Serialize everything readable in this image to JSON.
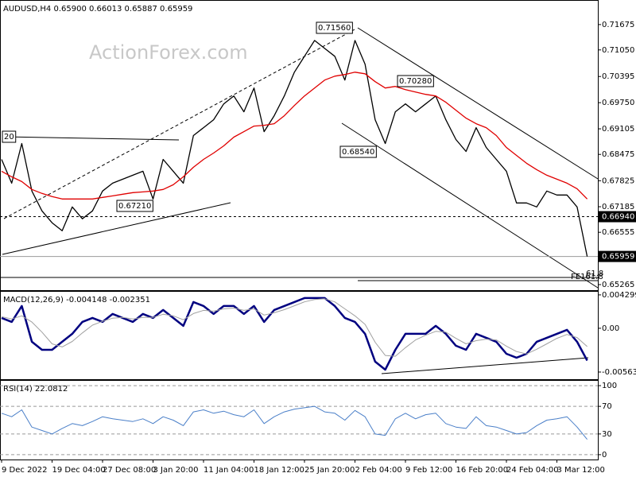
{
  "chart_data": [
    {
      "type": "line",
      "title": "AUDUSD,H4  0.65900 0.66013 0.65887 0.65959",
      "watermark": "ActionForex.com",
      "ylim": [
        0.65128,
        0.72261
      ],
      "yticks": [
        0.71675,
        {
          "value": 0.7105,
          "label": "0.71050"
        },
        0.70395,
        {
          "value": 0.6975,
          "label": "0.69750"
        },
        0.69105,
        0.68475,
        0.67825,
        0.67185,
        0.66555,
        0.65265
      ],
      "levels": [
        {
          "value": 0.6694,
          "label": "0.66940",
          "style": "dashed"
        },
        {
          "value": 0.65959,
          "label": "0.65959",
          "style": "solid"
        }
      ],
      "annotations": [
        "0.71560",
        "0.70280",
        "0.68540",
        "0.67210",
        "20",
        "61.8",
        "FE161.8"
      ],
      "series": [
        {
          "name": "Close",
          "color": "#000000",
          "values": [
            0.68352,
            0.67766,
            0.68743,
            0.67571,
            0.67082,
            0.66789,
            0.66594,
            0.6718,
            0.66887,
            0.67082,
            0.67571,
            0.67766,
            0.67864,
            0.67962,
            0.68059,
            0.67375,
            0.68352,
            0.68059,
            0.67766,
            0.68939,
            0.69134,
            0.6933,
            0.6972,
            0.69916,
            0.69525,
            0.70111,
            0.69036,
            0.69427,
            0.69916,
            0.70502,
            0.70893,
            0.71284,
            0.71088,
            0.70893,
            0.70307,
            0.71284,
            0.70698,
            0.6933,
            0.68743,
            0.69525,
            0.6972,
            0.69525,
            0.6972,
            0.69916,
            0.6933,
            0.68841,
            0.68548,
            0.69134,
            0.68646,
            0.68352,
            0.68059,
            0.67278,
            0.67278,
            0.6718,
            0.67571,
            0.67473,
            0.67473,
            0.6718,
            0.65959
          ]
        },
        {
          "name": "MA",
          "color": "#e00000",
          "values": [
            0.68059,
            0.67922,
            0.67805,
            0.6761,
            0.67512,
            0.67434,
            0.67375,
            0.67375,
            0.67375,
            0.67375,
            0.67414,
            0.67453,
            0.67493,
            0.67532,
            0.67551,
            0.67571,
            0.6761,
            0.67727,
            0.67922,
            0.68157,
            0.68352,
            0.68509,
            0.68685,
            0.689,
            0.69036,
            0.69173,
            0.69193,
            0.69232,
            0.69427,
            0.69681,
            0.69916,
            0.70111,
            0.70307,
            0.70404,
            0.70444,
            0.70502,
            0.70463,
            0.70268,
            0.70111,
            0.7015,
            0.70072,
            0.70014,
            0.69955,
            0.69916,
            0.6976,
            0.69564,
            0.69369,
            0.69232,
            0.69134,
            0.68939,
            0.68646,
            0.6845,
            0.68255,
            0.68098,
            0.67962,
            0.67864,
            0.67766,
            0.67629,
            0.67375
          ]
        }
      ]
    },
    {
      "type": "line",
      "title": "MACD(12,26,9) -0.004148 -0.002351",
      "ylim": [
        -0.00656,
        0.0047
      ],
      "yticks": [
        0.004299,
        {
          "value": 0,
          "label": "0.00"
        },
        -0.005636
      ],
      "series": [
        {
          "name": "MACD",
          "color": "#000080",
          "width": 2.5,
          "values": [
            0.00133,
            0.00082,
            0.00287,
            -0.00174,
            -0.00277,
            -0.00277,
            -0.00174,
            -0.00072,
            0.00082,
            0.00133,
            0.00082,
            0.00184,
            0.00133,
            0.00082,
            0.00184,
            0.00133,
            0.00236,
            0.00133,
            0.00031,
            0.00338,
            0.00287,
            0.00184,
            0.00287,
            0.00287,
            0.00184,
            0.00287,
            0.00082,
            0.00236,
            0.00287,
            0.00338,
            0.00389,
            0.00389,
            0.00389,
            0.00287,
            0.00133,
            0.00082,
            -0.00072,
            -0.0043,
            -0.00533,
            -0.00277,
            -0.00072,
            -0.00072,
            -0.00072,
            0.00031,
            -0.00072,
            -0.00225,
            -0.00277,
            -0.00072,
            -0.00123,
            -0.00174,
            -0.00328,
            -0.00379,
            -0.00328,
            -0.00174,
            -0.00123,
            -0.00072,
            -0.0002,
            -0.00174,
            -0.00415
          ]
        },
        {
          "name": "Signal",
          "color": "#a0a0a0",
          "width": 1,
          "values": [
            0.0015,
            0.0012,
            0.0016,
            0.0008,
            -0.0005,
            -0.002,
            -0.0024,
            -0.0017,
            -0.0006,
            0.0004,
            0.0009,
            0.0013,
            0.0014,
            0.0012,
            0.0014,
            0.0014,
            0.0018,
            0.0016,
            0.0011,
            0.0019,
            0.0023,
            0.0022,
            0.0025,
            0.0026,
            0.0023,
            0.0025,
            0.0017,
            0.002,
            0.0024,
            0.0029,
            0.0034,
            0.0037,
            0.0038,
            0.0034,
            0.0025,
            0.0016,
            0.0005,
            -0.0018,
            -0.0035,
            -0.0036,
            -0.0025,
            -0.0015,
            -0.0009,
            -0.0004,
            -0.0005,
            -0.0013,
            -0.002,
            -0.0016,
            -0.0014,
            -0.0015,
            -0.0023,
            -0.003,
            -0.0033,
            -0.0027,
            -0.002,
            -0.0013,
            -0.0008,
            -0.0012,
            -0.00235
          ]
        }
      ]
    },
    {
      "type": "line",
      "title": "RSI(14) 22.0812",
      "ylim": [
        -7,
        107
      ],
      "yticks": [
        100,
        70,
        30,
        0
      ],
      "grid": true,
      "categories": [
        "9 Dec 2022",
        null,
        null,
        null,
        null,
        "19 Dec 04:00",
        null,
        null,
        null,
        null,
        "27 Dec 08:00",
        null,
        null,
        null,
        null,
        "3 Jan 20:00",
        null,
        null,
        null,
        null,
        "11 Jan 04:00",
        null,
        null,
        null,
        null,
        "18 Jan 12:00",
        null,
        null,
        null,
        null,
        "25 Jan 20:00",
        null,
        null,
        null,
        null,
        "2 Feb 04:00",
        null,
        null,
        null,
        null,
        "9 Feb 12:00",
        null,
        null,
        null,
        null,
        "16 Feb 20:00",
        null,
        null,
        null,
        null,
        "24 Feb 04:00",
        null,
        null,
        null,
        null,
        "3 Mar 12:00",
        null,
        null,
        null
      ],
      "series": [
        {
          "name": "RSI",
          "color": "#4a7fc8",
          "width": 1,
          "values": [
            60,
            55,
            65,
            40,
            35,
            30,
            38,
            45,
            42,
            48,
            55,
            52,
            50,
            48,
            52,
            45,
            55,
            50,
            42,
            62,
            65,
            60,
            63,
            58,
            55,
            65,
            45,
            55,
            62,
            66,
            68,
            70,
            62,
            60,
            50,
            64,
            55,
            30,
            28,
            52,
            60,
            52,
            58,
            60,
            45,
            40,
            38,
            55,
            42,
            40,
            35,
            30,
            32,
            42,
            50,
            52,
            55,
            40,
            22.08
          ]
        }
      ]
    }
  ]
}
